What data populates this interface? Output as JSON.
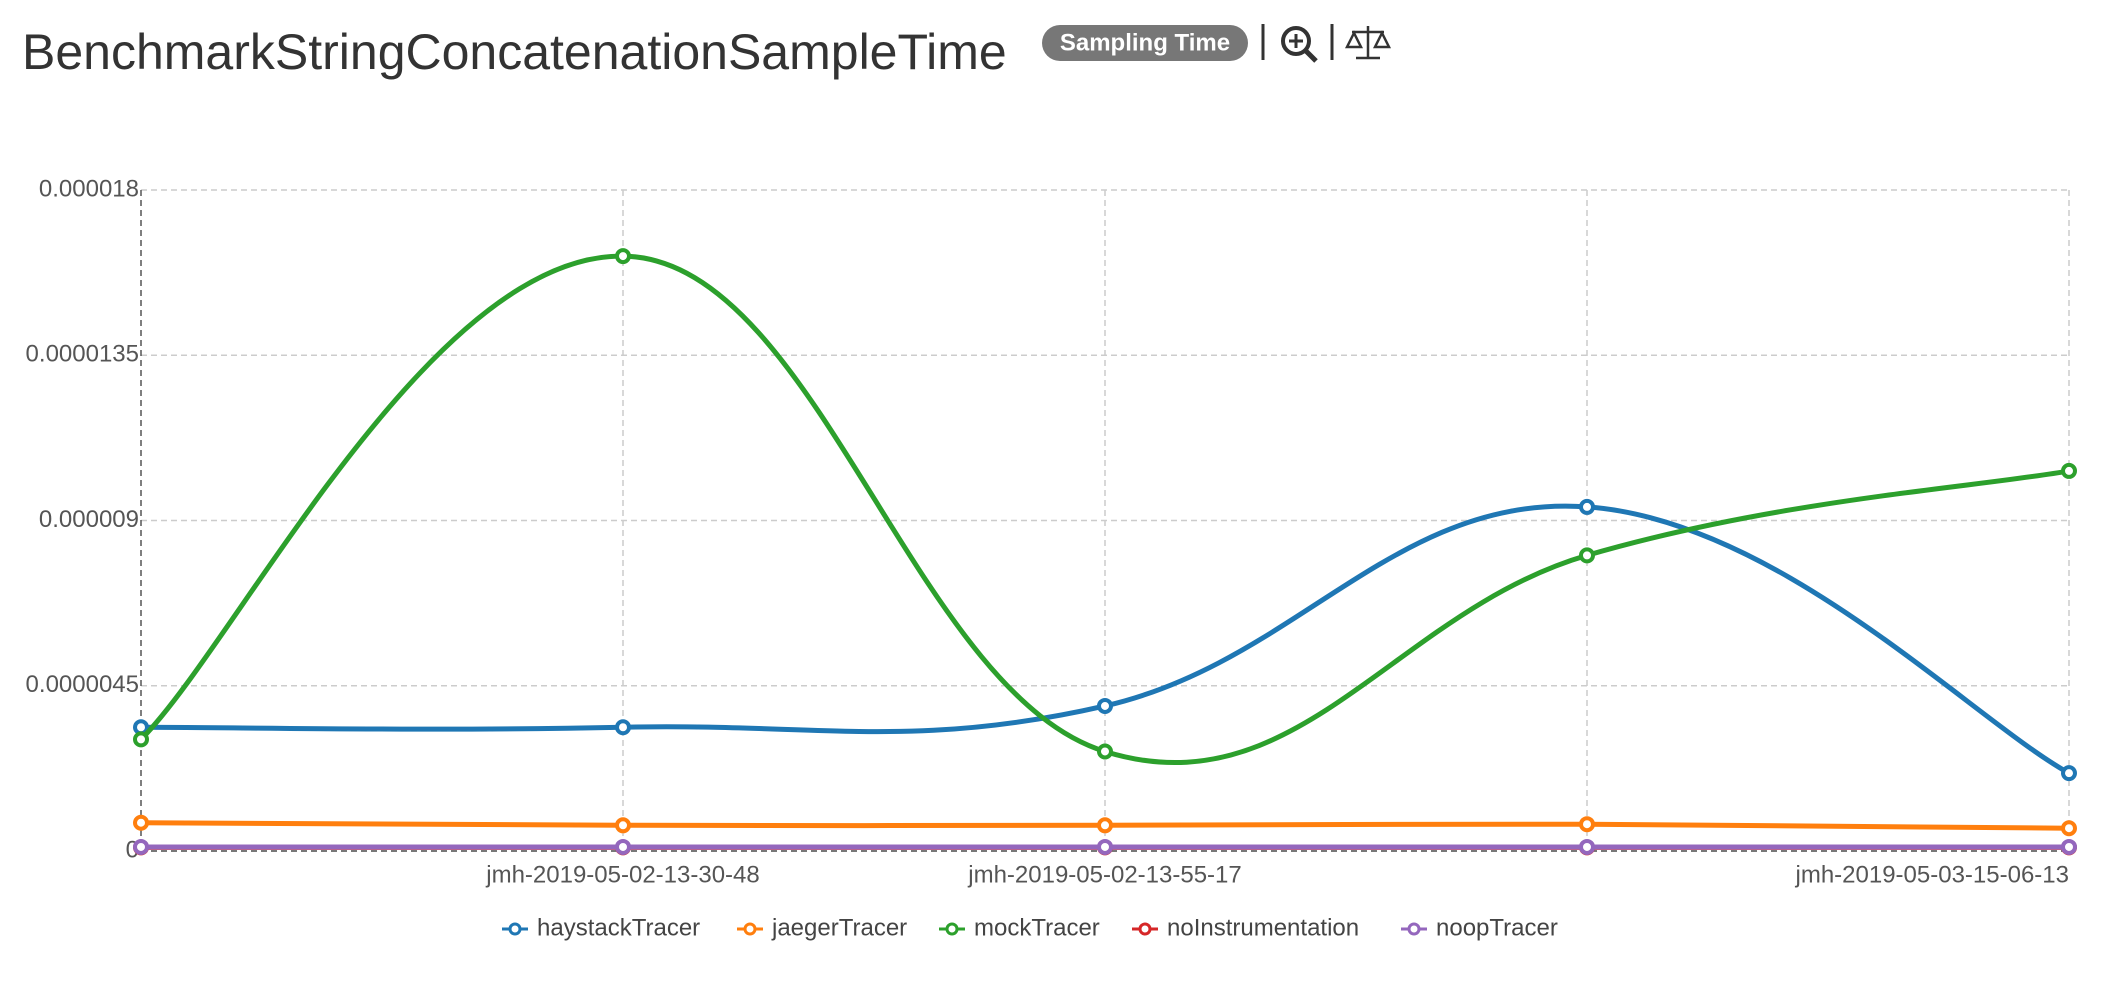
{
  "title": "BenchmarkStringConcatenationSampleTime",
  "badge": "Sampling Time",
  "chart_data": {
    "type": "line",
    "categories": [
      null,
      "jmh-2019-05-02-13-30-48",
      "jmh-2019-05-02-13-55-17",
      null,
      "jmh-2019-05-03-15-06-13"
    ],
    "series": [
      {
        "name": "haystackTracer",
        "color": "#1f77b4",
        "values": [
          3.37e-06,
          3.37e-06,
          3.95e-06,
          9.37e-06,
          2.12e-06
        ]
      },
      {
        "name": "jaegerTracer",
        "color": "#ff7f0e",
        "values": [
          7.7e-07,
          7e-07,
          7e-07,
          7.3e-07,
          6.2e-07
        ]
      },
      {
        "name": "mockTracer",
        "color": "#2ca02c",
        "values": [
          3.04e-06,
          1.62e-05,
          2.71e-06,
          8.05e-06,
          1.035e-05
        ]
      },
      {
        "name": "noInstrumentation",
        "color": "#d62728",
        "values": [
          1e-07,
          1e-07,
          1e-07,
          1e-07,
          1e-07
        ]
      },
      {
        "name": "noopTracer",
        "color": "#9467bd",
        "values": [
          1.1e-07,
          1.1e-07,
          1.1e-07,
          1.1e-07,
          1.1e-07
        ]
      }
    ],
    "ylim": [
      0,
      1.8e-05
    ],
    "yticks": [
      0,
      4.5e-06,
      9e-06,
      1.35e-05,
      1.8e-05
    ],
    "grid": true
  }
}
